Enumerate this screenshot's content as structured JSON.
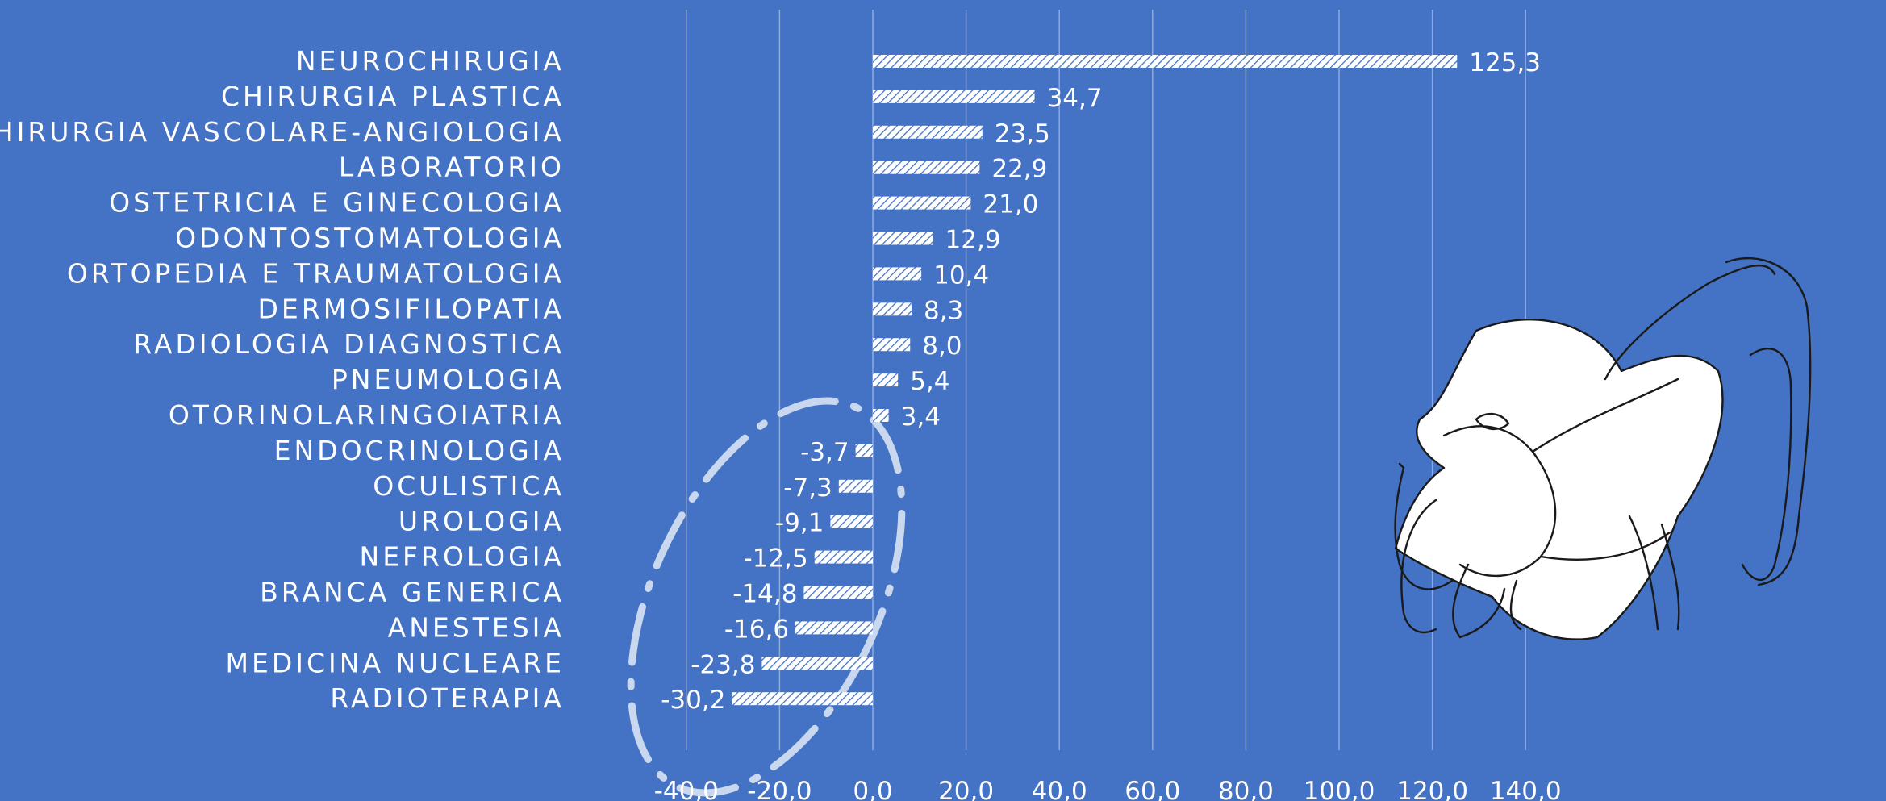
{
  "chart_data": {
    "type": "bar",
    "orientation": "horizontal",
    "categories": [
      "NEUROCHIRUGIA",
      "CHIRURGIA PLASTICA",
      "CHIRURGIA VASCOLARE-ANGIOLOGIA",
      "LABORATORIO",
      "OSTETRICIA E GINECOLOGIA",
      "ODONTOSTOMATOLOGIA",
      "ORTOPEDIA E TRAUMATOLOGIA",
      "DERMOSIFILOPATIA",
      "RADIOLOGIA DIAGNOSTICA",
      "PNEUMOLOGIA",
      "OTORINOLARINGOIATRIA",
      "ENDOCRINOLOGIA",
      "OCULISTICA",
      "UROLOGIA",
      "NEFROLOGIA",
      "BRANCA GENERICA",
      "ANESTESIA",
      "MEDICINA NUCLEARE",
      "RADIOTERAPIA"
    ],
    "values": [
      125.3,
      34.7,
      23.5,
      22.9,
      21.0,
      12.9,
      10.4,
      8.3,
      8.0,
      5.4,
      3.4,
      -3.7,
      -7.3,
      -9.1,
      -12.5,
      -14.8,
      -16.6,
      -23.8,
      -30.2
    ],
    "value_labels": [
      "125,3",
      "34,7",
      "23,5",
      "22,9",
      "21,0",
      "12,9",
      "10,4",
      "8,3",
      "8,0",
      "5,4",
      "3,4",
      "-3,7",
      "-7,3",
      "-9,1",
      "-12,5",
      "-14,8",
      "-16,6",
      "-23,8",
      "-30,2"
    ],
    "x_ticks": [
      -40,
      -20,
      0,
      20,
      40,
      60,
      80,
      100,
      120,
      140
    ],
    "x_tick_labels": [
      "-40,0",
      "-20,0",
      "0,0",
      "20,0",
      "40,0",
      "60,0",
      "80,0",
      "100,0",
      "120,0",
      "140,0"
    ],
    "xlim": [
      -40,
      140
    ],
    "grid": "vertical",
    "bar_fill": "diagonal-hatch",
    "annotation": "dash-dot ellipse around the negative bars",
    "illustration": "line drawing of a face wearing a mask (bottom-right)",
    "colors": {
      "background": "#4472C4",
      "bars": "#ffffff",
      "text": "#ffffff",
      "grid": "#8FAADC",
      "annotation": "#C9D7EF"
    }
  }
}
